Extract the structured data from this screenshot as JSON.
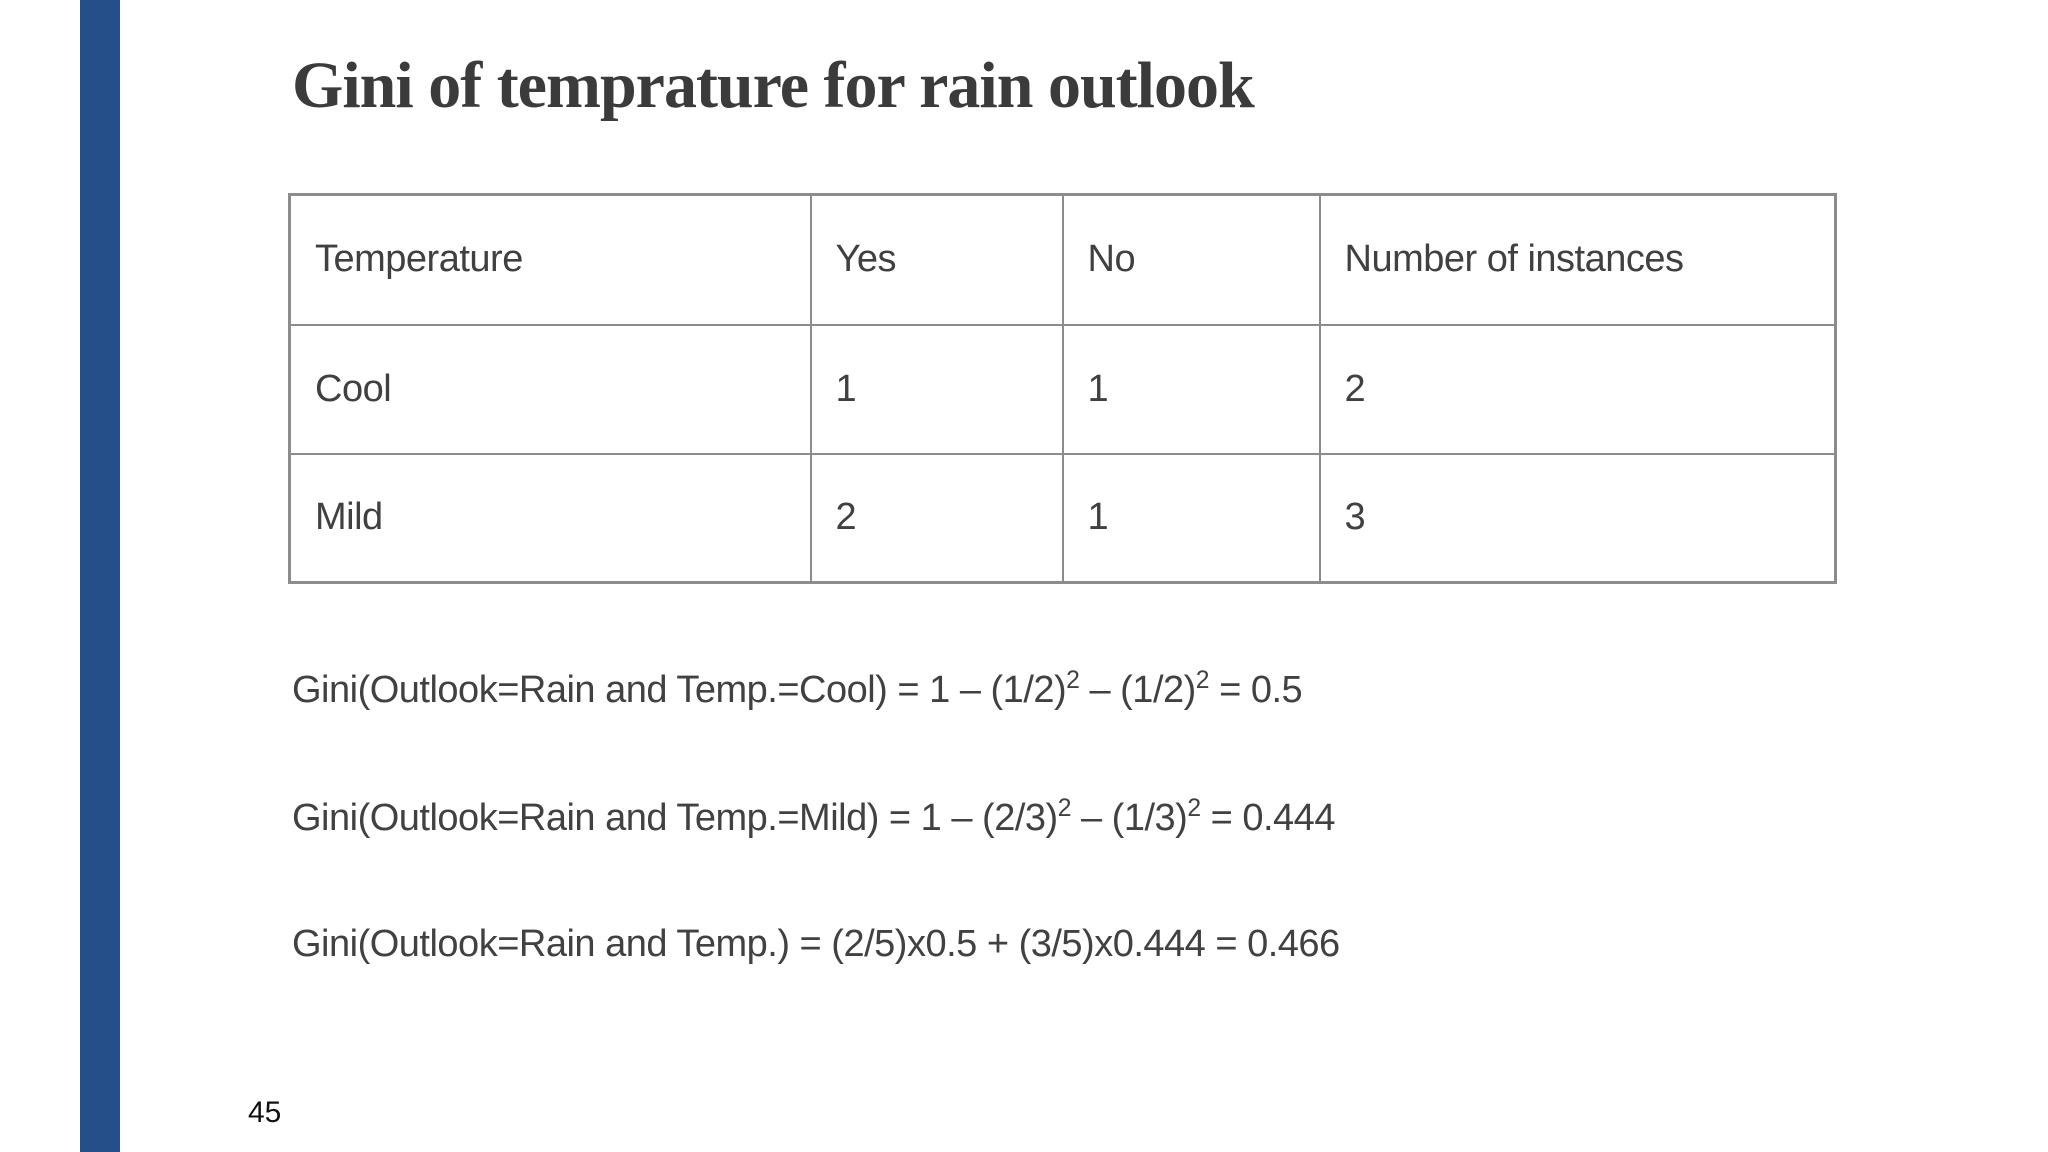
{
  "slide": {
    "title": "Gini of temprature for rain outlook",
    "page_number": "45",
    "accent_color": "#254F88",
    "border_color": "#8C8C8C"
  },
  "table": {
    "headers": [
      "Temperature",
      "Yes",
      "No",
      "Number of instances"
    ],
    "rows": [
      [
        "Cool",
        "1",
        "1",
        "2"
      ],
      [
        "Mild",
        "2",
        "1",
        "3"
      ]
    ]
  },
  "formulas": [
    {
      "segments": [
        {
          "text": "Gini(Outlook=Rain and Temp.=Cool) = 1 – (1/2)"
        },
        {
          "sup": "2"
        },
        {
          "text": " – (1/2)"
        },
        {
          "sup": "2"
        },
        {
          "text": " = 0.5"
        }
      ]
    },
    {
      "segments": [
        {
          "text": "Gini(Outlook=Rain and Temp.=Mild) = 1 – (2/3)"
        },
        {
          "sup": "2"
        },
        {
          "text": " – (1/3)"
        },
        {
          "sup": "2"
        },
        {
          "text": " = 0.444"
        }
      ]
    },
    {
      "segments": [
        {
          "text": "Gini(Outlook=Rain and Temp.) = (2/5)x0.5 + (3/5)x0.444 = 0.466"
        }
      ]
    }
  ]
}
